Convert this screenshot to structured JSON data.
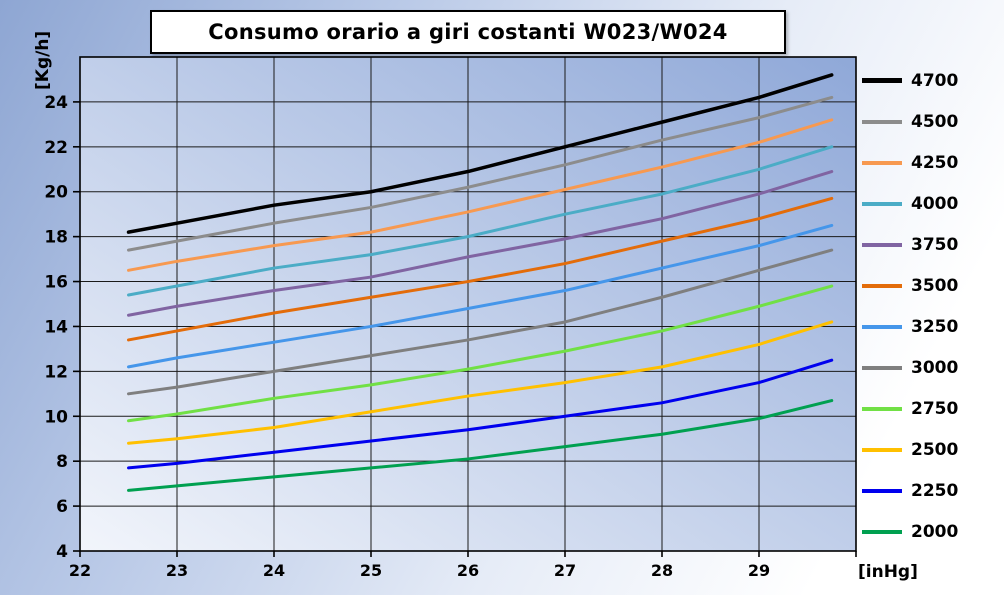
{
  "title": "Consumo orario a giri costanti W023/W024",
  "y_axis_label": "[Kg/h]",
  "x_axis_label": "[inHg]",
  "colors": {
    "plot_gradient_light": "#f2f5fb",
    "plot_gradient_dark": "#8fa8d8",
    "gridline": "#1a1a1a",
    "plot_border": "#000000"
  },
  "chart_data": {
    "type": "line",
    "title": "Consumo orario a giri costanti W023/W024",
    "xlabel": "[inHg]",
    "ylabel": "[Kg/h]",
    "xlim": [
      22,
      30
    ],
    "ylim": [
      4,
      26
    ],
    "x_ticks": [
      22,
      23,
      24,
      25,
      26,
      27,
      28,
      29
    ],
    "y_ticks": [
      4,
      6,
      8,
      10,
      12,
      14,
      16,
      18,
      20,
      22,
      24
    ],
    "x_gridlines": [
      23,
      24,
      25,
      26,
      27,
      28,
      29
    ],
    "y_gridlines": [
      6,
      8,
      10,
      12,
      14,
      16,
      18,
      20,
      22,
      24
    ],
    "grid": true,
    "legend_position": "right",
    "x": [
      22.5,
      23,
      24,
      25,
      26,
      27,
      28,
      29,
      29.75
    ],
    "series": [
      {
        "name": "4700",
        "color": "#000000",
        "width": 3.5,
        "values": [
          18.2,
          18.6,
          19.4,
          20.0,
          20.9,
          22.0,
          23.1,
          24.2,
          25.2
        ]
      },
      {
        "name": "4500",
        "color": "#8c8c8c",
        "width": 3,
        "values": [
          17.4,
          17.8,
          18.6,
          19.3,
          20.2,
          21.2,
          22.3,
          23.3,
          24.2
        ]
      },
      {
        "name": "4250",
        "color": "#f79950",
        "width": 3,
        "values": [
          16.5,
          16.9,
          17.6,
          18.2,
          19.1,
          20.1,
          21.1,
          22.2,
          23.2
        ]
      },
      {
        "name": "4000",
        "color": "#4bacc6",
        "width": 3,
        "values": [
          15.4,
          15.8,
          16.6,
          17.2,
          18.0,
          19.0,
          19.9,
          21.0,
          22.0
        ]
      },
      {
        "name": "3750",
        "color": "#8064a2",
        "width": 3,
        "values": [
          14.5,
          14.9,
          15.6,
          16.2,
          17.1,
          17.9,
          18.8,
          19.9,
          20.9
        ]
      },
      {
        "name": "3500",
        "color": "#e36c0a",
        "width": 3,
        "values": [
          13.4,
          13.8,
          14.6,
          15.3,
          16.0,
          16.8,
          17.8,
          18.8,
          19.7
        ]
      },
      {
        "name": "3250",
        "color": "#4596ea",
        "width": 3,
        "values": [
          12.2,
          12.6,
          13.3,
          14.0,
          14.8,
          15.6,
          16.6,
          17.6,
          18.5
        ]
      },
      {
        "name": "3000",
        "color": "#7f7f7f",
        "width": 3,
        "values": [
          11.0,
          11.3,
          12.0,
          12.7,
          13.4,
          14.2,
          15.3,
          16.5,
          17.4
        ]
      },
      {
        "name": "2750",
        "color": "#71e045",
        "width": 3,
        "values": [
          9.8,
          10.1,
          10.8,
          11.4,
          12.1,
          12.9,
          13.8,
          14.9,
          15.8
        ]
      },
      {
        "name": "2500",
        "color": "#ffc000",
        "width": 3,
        "values": [
          8.8,
          9.0,
          9.5,
          10.2,
          10.9,
          11.5,
          12.2,
          13.2,
          14.2
        ]
      },
      {
        "name": "2250",
        "color": "#0000ee",
        "width": 3,
        "values": [
          7.7,
          7.9,
          8.4,
          8.9,
          9.4,
          10.0,
          10.6,
          11.5,
          12.5
        ]
      },
      {
        "name": "2000",
        "color": "#00a050",
        "width": 3,
        "values": [
          6.7,
          6.9,
          7.3,
          7.7,
          8.1,
          8.65,
          9.2,
          9.9,
          10.7
        ]
      }
    ]
  }
}
